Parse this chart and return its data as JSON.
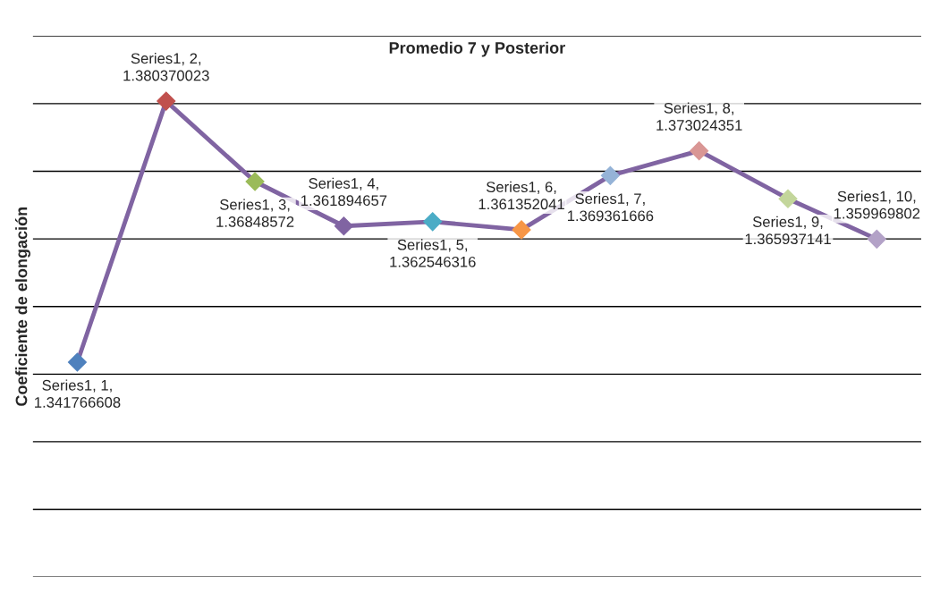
{
  "chart_data": {
    "type": "line",
    "title": "Promedio 7 y Posterior",
    "ylabel": "Coeficiente de elongación",
    "categories": [
      null,
      null,
      null,
      null,
      null,
      null,
      null,
      null,
      null,
      null
    ],
    "series": [
      {
        "color": "#8064a2",
        "colors": [
          "#4f81bd",
          "#c0504d",
          "#9bbb59",
          "#8064a2",
          "#4bacc6",
          "#f79646",
          "#95b3d7",
          "#d99694",
          "#c3d69b",
          "#b3a2c7"
        ],
        "values": [
          1.341766608,
          1.380370023,
          1.36848572,
          1.361894657,
          1.362546316,
          1.361352041,
          1.369361666,
          1.373024351,
          1.365937141,
          1.359969802
        ],
        "value_labels": [
          "Series1, 1, 1.341766608",
          "Series1, 2, 1.380370023",
          "Series1, 3, 1.36848572",
          "Series1, 4, 1.361894657",
          "Series1, 5, 1.362546316",
          "Series1, 6, 1.361352041",
          "Series1, 7, 1.369361666",
          "Series1, 8, 1.373024351",
          "Series1, 9, 1.365937141",
          "Series1, 10, 1.359969802"
        ]
      }
    ],
    "ylim": [
      1.31,
      1.39
    ],
    "yticks": [
      {
        "value": 1.31,
        "label": null
      },
      {
        "value": 1.32,
        "label": null
      },
      {
        "value": 1.33,
        "label": null
      },
      {
        "value": 1.34,
        "label": null
      },
      {
        "value": 1.35,
        "label": null
      },
      {
        "value": 1.36,
        "label": null
      },
      {
        "value": 1.37,
        "label": null
      },
      {
        "value": 1.38,
        "label": null
      },
      {
        "value": 1.39,
        "label": null
      }
    ],
    "grid": "y",
    "tick_labels": false,
    "marker": "diamond",
    "line_style": "solid"
  }
}
